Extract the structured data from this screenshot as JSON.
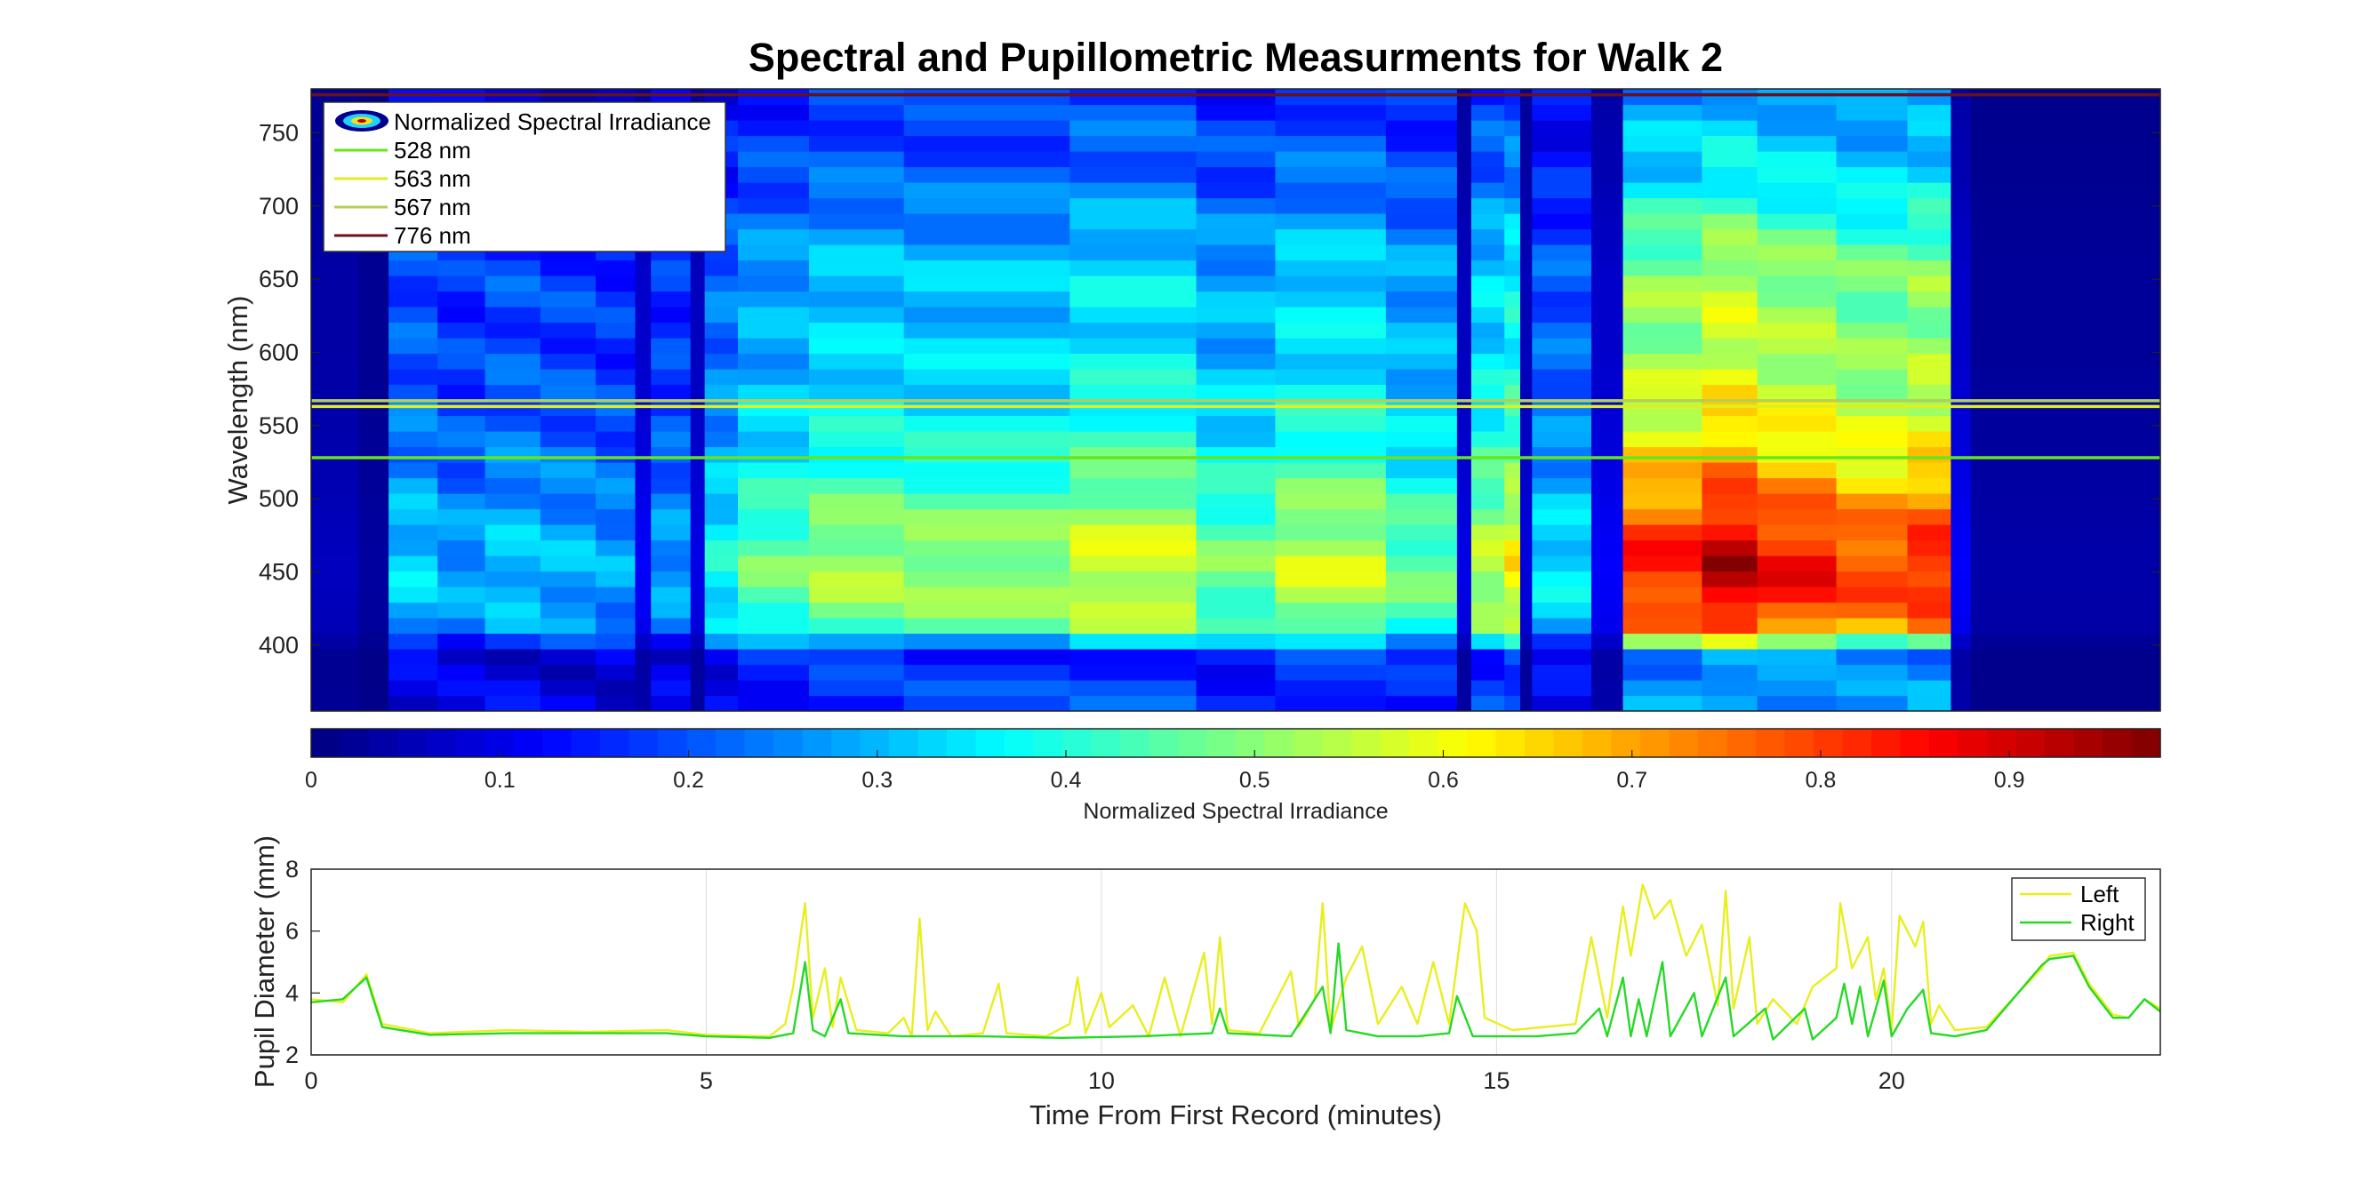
{
  "title": "Spectral and Pupillometric Measurments for Walk 2",
  "chart_data": [
    {
      "type": "heatmap",
      "title": "Spectral and Pupillometric Measurments for Walk 2",
      "xlabel": "",
      "ylabel": "Wavelength (nm)",
      "xlim": [
        0,
        23.4
      ],
      "ylim": [
        355,
        780
      ],
      "ytick_labels": [
        "400",
        "450",
        "500",
        "550",
        "600",
        "650",
        "700",
        "750"
      ],
      "colormap": "jet",
      "colorbar": {
        "label": "Normalized Spectral Irradiance",
        "range": [
          0,
          0.98
        ],
        "tick_labels": [
          "0",
          "0.1",
          "0.2",
          "0.3",
          "0.4",
          "0.5",
          "0.6",
          "0.7",
          "0.8",
          "0.9"
        ]
      },
      "legend": {
        "placement": "top-left",
        "entries": [
          "Normalized Spectral Irradiance",
          "528 nm",
          "563 nm",
          "567 nm",
          "776 nm"
        ]
      },
      "reference_lines": [
        {
          "name": "528 nm",
          "wavelength": 528,
          "color": "#66e61a"
        },
        {
          "name": "563 nm",
          "wavelength": 563,
          "color": "#e0ee22"
        },
        {
          "name": "567 nm",
          "wavelength": 567,
          "color": "#b5cf55"
        },
        {
          "name": "776 nm",
          "wavelength": 776,
          "color": "#6b0f18"
        }
      ],
      "time_segments": [
        {
          "t0": 0.0,
          "t1": 0.6,
          "level": 0.06
        },
        {
          "t0": 0.6,
          "t1": 0.98,
          "level": 0.03
        },
        {
          "t0": 0.98,
          "t1": 1.6,
          "level": 0.33
        },
        {
          "t0": 1.6,
          "t1": 2.2,
          "level": 0.28
        },
        {
          "t0": 2.2,
          "t1": 2.9,
          "level": 0.32
        },
        {
          "t0": 2.9,
          "t1": 3.6,
          "level": 0.3
        },
        {
          "t0": 3.6,
          "t1": 4.1,
          "level": 0.28
        },
        {
          "t0": 4.1,
          "t1": 4.3,
          "level": 0.12
        },
        {
          "t0": 4.3,
          "t1": 4.8,
          "level": 0.28
        },
        {
          "t0": 4.8,
          "t1": 4.98,
          "level": 0.1
        },
        {
          "t0": 4.98,
          "t1": 5.4,
          "level": 0.38
        },
        {
          "t0": 5.4,
          "t1": 6.3,
          "level": 0.47
        },
        {
          "t0": 6.3,
          "t1": 7.5,
          "level": 0.53
        },
        {
          "t0": 7.5,
          "t1": 9.6,
          "level": 0.52
        },
        {
          "t0": 9.6,
          "t1": 11.2,
          "level": 0.58
        },
        {
          "t0": 11.2,
          "t1": 12.2,
          "level": 0.48
        },
        {
          "t0": 12.2,
          "t1": 13.6,
          "level": 0.56
        },
        {
          "t0": 13.6,
          "t1": 14.5,
          "level": 0.47
        },
        {
          "t0": 14.5,
          "t1": 14.68,
          "level": 0.1
        },
        {
          "t0": 14.68,
          "t1": 15.1,
          "level": 0.55
        },
        {
          "t0": 15.1,
          "t1": 15.3,
          "level": 0.62
        },
        {
          "t0": 15.3,
          "t1": 15.45,
          "level": 0.09
        },
        {
          "t0": 15.45,
          "t1": 16.2,
          "level": 0.35
        },
        {
          "t0": 16.2,
          "t1": 16.6,
          "level": 0.12
        },
        {
          "t0": 16.6,
          "t1": 17.6,
          "level": 0.84
        },
        {
          "t0": 17.6,
          "t1": 18.3,
          "level": 0.93
        },
        {
          "t0": 18.3,
          "t1": 19.3,
          "level": 0.86
        },
        {
          "t0": 19.3,
          "t1": 20.2,
          "level": 0.8
        },
        {
          "t0": 20.2,
          "t1": 20.75,
          "level": 0.84
        },
        {
          "t0": 20.75,
          "t1": 21.0,
          "level": 0.12
        },
        {
          "t0": 21.0,
          "t1": 23.4,
          "level": 0.04
        }
      ],
      "wavelength_profile": [
        {
          "nm": 355,
          "w": 0.32
        },
        {
          "nm": 375,
          "w": 0.33
        },
        {
          "nm": 385,
          "w": 0.28
        },
        {
          "nm": 395,
          "w": 0.3
        },
        {
          "nm": 410,
          "w": 0.85
        },
        {
          "nm": 430,
          "w": 0.95
        },
        {
          "nm": 455,
          "w": 1.0
        },
        {
          "nm": 480,
          "w": 0.93
        },
        {
          "nm": 510,
          "w": 0.82
        },
        {
          "nm": 540,
          "w": 0.72
        },
        {
          "nm": 570,
          "w": 0.66
        },
        {
          "nm": 610,
          "w": 0.6
        },
        {
          "nm": 650,
          "w": 0.6
        },
        {
          "nm": 690,
          "w": 0.5
        },
        {
          "nm": 720,
          "w": 0.4
        },
        {
          "nm": 755,
          "w": 0.36
        },
        {
          "nm": 780,
          "w": 0.3
        }
      ]
    },
    {
      "type": "line",
      "title": "",
      "xlabel": "Time From First Record (minutes)",
      "ylabel": "Pupil Diameter (mm)",
      "xlim": [
        0,
        23.4
      ],
      "ylim": [
        2,
        8
      ],
      "xtick_labels": [
        "0",
        "5",
        "10",
        "15",
        "20"
      ],
      "ytick_labels": [
        "2",
        "4",
        "6",
        "8"
      ],
      "legend": {
        "placement": "top-right"
      },
      "series": [
        {
          "name": "Left",
          "color": "#e8ef1e",
          "points": [
            [
              0,
              3.8
            ],
            [
              0.4,
              3.7
            ],
            [
              0.7,
              4.6
            ],
            [
              0.9,
              3.0
            ],
            [
              1.5,
              2.7
            ],
            [
              2.5,
              2.8
            ],
            [
              3.5,
              2.75
            ],
            [
              4.5,
              2.8
            ],
            [
              5.0,
              2.65
            ],
            [
              5.8,
              2.6
            ],
            [
              6.0,
              3.0
            ],
            [
              6.1,
              4.2
            ],
            [
              6.25,
              6.9
            ],
            [
              6.35,
              3.2
            ],
            [
              6.5,
              4.8
            ],
            [
              6.6,
              2.9
            ],
            [
              6.7,
              4.5
            ],
            [
              6.9,
              2.8
            ],
            [
              7.3,
              2.7
            ],
            [
              7.5,
              3.2
            ],
            [
              7.6,
              2.6
            ],
            [
              7.7,
              6.4
            ],
            [
              7.8,
              2.8
            ],
            [
              7.9,
              3.4
            ],
            [
              8.1,
              2.6
            ],
            [
              8.5,
              2.7
            ],
            [
              8.7,
              4.3
            ],
            [
              8.8,
              2.7
            ],
            [
              9.3,
              2.6
            ],
            [
              9.6,
              3.0
            ],
            [
              9.7,
              4.5
            ],
            [
              9.8,
              2.7
            ],
            [
              10.0,
              4.0
            ],
            [
              10.1,
              2.9
            ],
            [
              10.4,
              3.6
            ],
            [
              10.6,
              2.6
            ],
            [
              10.8,
              4.5
            ],
            [
              11.0,
              2.6
            ],
            [
              11.3,
              5.3
            ],
            [
              11.4,
              3.0
            ],
            [
              11.5,
              5.8
            ],
            [
              11.6,
              2.8
            ],
            [
              12.0,
              2.7
            ],
            [
              12.4,
              4.7
            ],
            [
              12.5,
              2.9
            ],
            [
              12.7,
              3.8
            ],
            [
              12.8,
              6.9
            ],
            [
              12.9,
              2.8
            ],
            [
              13.1,
              4.5
            ],
            [
              13.3,
              5.5
            ],
            [
              13.5,
              3.0
            ],
            [
              13.8,
              4.2
            ],
            [
              14.0,
              3.0
            ],
            [
              14.2,
              5.0
            ],
            [
              14.4,
              3.0
            ],
            [
              14.6,
              6.9
            ],
            [
              14.75,
              6.0
            ],
            [
              14.85,
              3.2
            ],
            [
              15.2,
              2.8
            ],
            [
              16.0,
              3.0
            ],
            [
              16.2,
              5.8
            ],
            [
              16.4,
              3.2
            ],
            [
              16.6,
              6.8
            ],
            [
              16.7,
              5.2
            ],
            [
              16.85,
              7.5
            ],
            [
              17.0,
              6.4
            ],
            [
              17.2,
              7.0
            ],
            [
              17.4,
              5.2
            ],
            [
              17.6,
              6.2
            ],
            [
              17.8,
              3.6
            ],
            [
              17.9,
              7.3
            ],
            [
              18.0,
              3.5
            ],
            [
              18.2,
              5.8
            ],
            [
              18.3,
              3.0
            ],
            [
              18.5,
              3.8
            ],
            [
              18.8,
              3.0
            ],
            [
              19.0,
              4.2
            ],
            [
              19.3,
              4.8
            ],
            [
              19.35,
              6.9
            ],
            [
              19.5,
              4.8
            ],
            [
              19.7,
              5.8
            ],
            [
              19.8,
              3.8
            ],
            [
              19.9,
              4.8
            ],
            [
              20.0,
              2.8
            ],
            [
              20.1,
              6.5
            ],
            [
              20.3,
              5.5
            ],
            [
              20.4,
              6.3
            ],
            [
              20.5,
              3.0
            ],
            [
              20.6,
              3.6
            ],
            [
              20.8,
              2.8
            ],
            [
              21.2,
              2.9
            ],
            [
              21.6,
              4.0
            ],
            [
              21.9,
              4.8
            ],
            [
              22.0,
              5.2
            ],
            [
              22.3,
              5.3
            ],
            [
              22.5,
              4.3
            ],
            [
              22.8,
              3.3
            ],
            [
              23.0,
              3.2
            ],
            [
              23.2,
              3.8
            ],
            [
              23.4,
              3.5
            ]
          ]
        },
        {
          "name": "Right",
          "color": "#26d926",
          "points": [
            [
              0,
              3.7
            ],
            [
              0.4,
              3.8
            ],
            [
              0.7,
              4.5
            ],
            [
              0.9,
              2.9
            ],
            [
              1.5,
              2.65
            ],
            [
              2.5,
              2.7
            ],
            [
              3.5,
              2.7
            ],
            [
              4.5,
              2.7
            ],
            [
              5.0,
              2.6
            ],
            [
              5.8,
              2.55
            ],
            [
              6.1,
              2.7
            ],
            [
              6.25,
              5.0
            ],
            [
              6.35,
              2.8
            ],
            [
              6.5,
              2.6
            ],
            [
              6.7,
              3.8
            ],
            [
              6.8,
              2.7
            ],
            [
              7.5,
              2.6
            ],
            [
              8.5,
              2.6
            ],
            [
              9.5,
              2.55
            ],
            [
              10.5,
              2.6
            ],
            [
              11.4,
              2.7
            ],
            [
              11.5,
              3.5
            ],
            [
              11.6,
              2.7
            ],
            [
              12.4,
              2.6
            ],
            [
              12.8,
              4.2
            ],
            [
              12.9,
              2.7
            ],
            [
              13.0,
              5.6
            ],
            [
              13.1,
              2.8
            ],
            [
              13.5,
              2.6
            ],
            [
              14.0,
              2.6
            ],
            [
              14.4,
              2.7
            ],
            [
              14.5,
              3.9
            ],
            [
              14.7,
              2.6
            ],
            [
              15.5,
              2.6
            ],
            [
              16.0,
              2.7
            ],
            [
              16.3,
              3.5
            ],
            [
              16.4,
              2.6
            ],
            [
              16.6,
              4.5
            ],
            [
              16.7,
              2.6
            ],
            [
              16.8,
              3.8
            ],
            [
              16.9,
              2.6
            ],
            [
              17.1,
              5.0
            ],
            [
              17.2,
              2.6
            ],
            [
              17.5,
              4.0
            ],
            [
              17.6,
              2.6
            ],
            [
              17.9,
              4.5
            ],
            [
              18.0,
              2.6
            ],
            [
              18.4,
              3.5
            ],
            [
              18.5,
              2.5
            ],
            [
              18.9,
              3.5
            ],
            [
              19.0,
              2.5
            ],
            [
              19.3,
              3.2
            ],
            [
              19.4,
              4.3
            ],
            [
              19.5,
              3.0
            ],
            [
              19.6,
              4.2
            ],
            [
              19.7,
              2.6
            ],
            [
              19.9,
              4.4
            ],
            [
              20.0,
              2.6
            ],
            [
              20.2,
              3.5
            ],
            [
              20.4,
              4.1
            ],
            [
              20.5,
              2.7
            ],
            [
              20.8,
              2.6
            ],
            [
              21.2,
              2.8
            ],
            [
              21.6,
              4.0
            ],
            [
              21.9,
              4.9
            ],
            [
              22.0,
              5.1
            ],
            [
              22.3,
              5.2
            ],
            [
              22.5,
              4.2
            ],
            [
              22.8,
              3.2
            ],
            [
              23.0,
              3.2
            ],
            [
              23.2,
              3.8
            ],
            [
              23.4,
              3.4
            ]
          ]
        }
      ]
    }
  ]
}
